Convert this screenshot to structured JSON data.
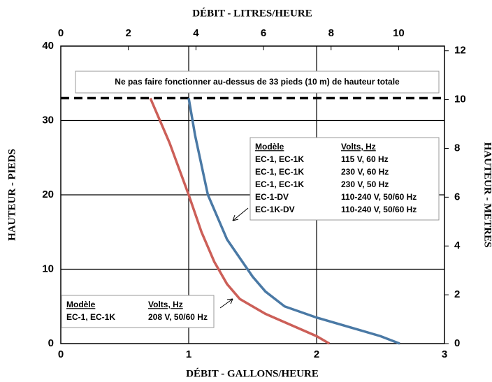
{
  "chart_data": {
    "type": "line",
    "xlabel": "DÉBIT - GALLONS/HEURE",
    "x2label": "DÉBIT - LITRES/HEURE",
    "ylabel": "HAUTEUR - PIEDS",
    "y2label": "HAUTEUR - MÈTRES",
    "xlim": [
      0,
      3
    ],
    "xticks": [
      0,
      1,
      2,
      3
    ],
    "x2lim": [
      0,
      11.356
    ],
    "x2ticks": [
      0,
      2,
      4,
      6,
      8,
      10
    ],
    "ylim": [
      0,
      40
    ],
    "yticks": [
      0,
      10,
      20,
      30,
      40
    ],
    "y2lim": [
      0,
      12.192
    ],
    "y2ticks": [
      0,
      2,
      4,
      6,
      8,
      10,
      12
    ],
    "grid": true,
    "limit_line": 33,
    "annotation": "Ne pas faire fonctionner au-dessus de 33 pieds (10 m) de hauteur totale",
    "series": [
      {
        "color": "#4a79a5",
        "x": [
          1.0,
          1.05,
          1.15,
          1.3,
          1.5,
          1.6,
          1.75,
          2.0,
          2.3,
          2.5,
          2.65
        ],
        "values": [
          33,
          28,
          20,
          14,
          9,
          7,
          5,
          3.5,
          2,
          1,
          0
        ]
      },
      {
        "color": "#cc5f58",
        "x": [
          0.7,
          0.85,
          1.0,
          1.1,
          1.2,
          1.3,
          1.4,
          1.6,
          1.8,
          2.0,
          2.1
        ],
        "values": [
          33,
          27,
          20,
          15,
          11,
          8,
          6,
          4,
          2.5,
          1,
          0
        ]
      }
    ],
    "legends": [
      {
        "header": [
          "Modèle",
          "Volts, Hz"
        ],
        "rows": [
          [
            "EC-1, EC-1K",
            "115 V, 60 Hz"
          ],
          [
            "EC-1, EC-1K",
            "230 V, 60 Hz"
          ],
          [
            "EC-1, EC-1K",
            "230 V, 50 Hz"
          ],
          [
            "EC-1-DV",
            "110-240 V, 50/60 Hz"
          ],
          [
            "EC-1K-DV",
            "110-240 V, 50/60 Hz"
          ]
        ]
      },
      {
        "header": [
          "Modèle",
          "Volts, Hz"
        ],
        "rows": [
          [
            "EC-1, EC-1K",
            "208 V, 50/60 Hz"
          ]
        ]
      }
    ]
  }
}
